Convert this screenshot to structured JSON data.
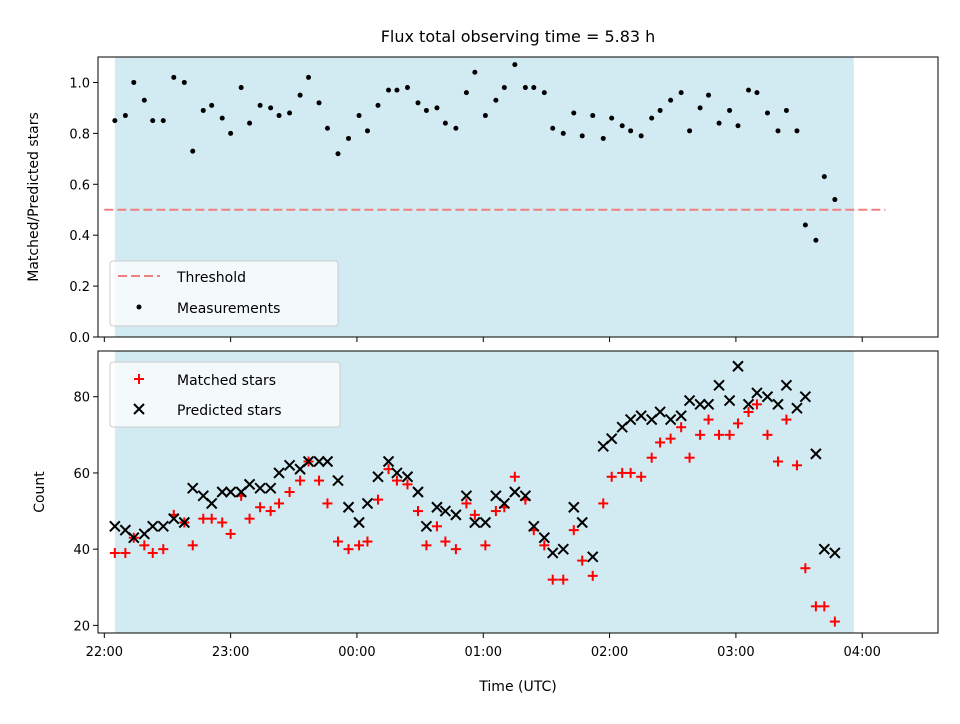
{
  "title": "Flux total observing time = 5.83 h",
  "colors": {
    "shade": "#add8e6",
    "threshold": "#f08080",
    "measurements": "#000000",
    "matched": "#ff0000",
    "predicted": "#000000"
  },
  "chart_data": [
    {
      "type": "scatter",
      "panel": "top",
      "ylabel": "Matched/Predicted stars",
      "xlabel": "",
      "ylim": [
        0,
        1.1
      ],
      "yticks": [
        0.0,
        0.2,
        0.4,
        0.6,
        0.8,
        1.0
      ],
      "ytick_labels": [
        "0.0",
        "0.2",
        "0.4",
        "0.6",
        "0.8",
        "1.0"
      ],
      "legend": {
        "placement": "lower-left",
        "entries": [
          "Threshold",
          "Measurements"
        ]
      },
      "threshold": {
        "name": "Threshold",
        "value": 0.5,
        "x_start": "22:00",
        "x_end": "04:11",
        "style": "dashed"
      },
      "shaded_region": {
        "x_start": "22:05",
        "x_end": "03:56"
      },
      "series": [
        {
          "name": "Measurements",
          "marker": "dot",
          "points": [
            [
              "22:05",
              0.85
            ],
            [
              "22:10",
              0.87
            ],
            [
              "22:14",
              1.0
            ],
            [
              "22:19",
              0.93
            ],
            [
              "22:23",
              0.85
            ],
            [
              "22:28",
              0.85
            ],
            [
              "22:33",
              1.02
            ],
            [
              "22:38",
              1.0
            ],
            [
              "22:42",
              0.73
            ],
            [
              "22:47",
              0.89
            ],
            [
              "22:51",
              0.91
            ],
            [
              "22:56",
              0.86
            ],
            [
              "23:00",
              0.8
            ],
            [
              "23:05",
              0.98
            ],
            [
              "23:09",
              0.84
            ],
            [
              "23:14",
              0.91
            ],
            [
              "23:19",
              0.9
            ],
            [
              "23:23",
              0.87
            ],
            [
              "23:28",
              0.88
            ],
            [
              "23:33",
              0.95
            ],
            [
              "23:37",
              1.02
            ],
            [
              "23:42",
              0.92
            ],
            [
              "23:46",
              0.82
            ],
            [
              "23:51",
              0.72
            ],
            [
              "23:56",
              0.78
            ],
            [
              "00:01",
              0.87
            ],
            [
              "00:05",
              0.81
            ],
            [
              "00:10",
              0.91
            ],
            [
              "00:15",
              0.97
            ],
            [
              "00:19",
              0.97
            ],
            [
              "00:24",
              0.98
            ],
            [
              "00:29",
              0.92
            ],
            [
              "00:33",
              0.89
            ],
            [
              "00:38",
              0.9
            ],
            [
              "00:42",
              0.84
            ],
            [
              "00:47",
              0.82
            ],
            [
              "00:52",
              0.96
            ],
            [
              "00:56",
              1.04
            ],
            [
              "01:01",
              0.87
            ],
            [
              "01:06",
              0.93
            ],
            [
              "01:10",
              0.98
            ],
            [
              "01:15",
              1.07
            ],
            [
              "01:20",
              0.98
            ],
            [
              "01:24",
              0.98
            ],
            [
              "01:29",
              0.96
            ],
            [
              "01:33",
              0.82
            ],
            [
              "01:38",
              0.8
            ],
            [
              "01:43",
              0.88
            ],
            [
              "01:47",
              0.79
            ],
            [
              "01:52",
              0.87
            ],
            [
              "01:57",
              0.78
            ],
            [
              "02:01",
              0.86
            ],
            [
              "02:06",
              0.83
            ],
            [
              "02:10",
              0.81
            ],
            [
              "02:15",
              0.79
            ],
            [
              "02:20",
              0.86
            ],
            [
              "02:24",
              0.89
            ],
            [
              "02:29",
              0.93
            ],
            [
              "02:34",
              0.96
            ],
            [
              "02:38",
              0.81
            ],
            [
              "02:43",
              0.9
            ],
            [
              "02:47",
              0.95
            ],
            [
              "02:52",
              0.84
            ],
            [
              "02:57",
              0.89
            ],
            [
              "03:01",
              0.83
            ],
            [
              "03:06",
              0.97
            ],
            [
              "03:10",
              0.96
            ],
            [
              "03:15",
              0.88
            ],
            [
              "03:20",
              0.81
            ],
            [
              "03:24",
              0.89
            ],
            [
              "03:29",
              0.81
            ],
            [
              "03:33",
              0.44
            ],
            [
              "03:38",
              0.38
            ],
            [
              "03:42",
              0.63
            ],
            [
              "03:47",
              0.54
            ]
          ]
        }
      ]
    },
    {
      "type": "scatter",
      "panel": "bottom",
      "ylabel": "Count",
      "xlabel": "Time (UTC)",
      "ylim": [
        18,
        92
      ],
      "yticks": [
        20,
        40,
        60,
        80
      ],
      "ytick_labels": [
        "20",
        "40",
        "60",
        "80"
      ],
      "xticks": [
        "22:00",
        "23:00",
        "00:00",
        "01:00",
        "02:00",
        "03:00",
        "04:00"
      ],
      "legend": {
        "placement": "upper-left",
        "entries": [
          "Matched stars",
          "Predicted stars"
        ]
      },
      "shaded_region": {
        "x_start": "22:05",
        "x_end": "03:56"
      },
      "series": [
        {
          "name": "Matched stars",
          "marker": "plus",
          "points": [
            [
              "22:05",
              39
            ],
            [
              "22:10",
              39
            ],
            [
              "22:14",
              43
            ],
            [
              "22:19",
              41
            ],
            [
              "22:23",
              39
            ],
            [
              "22:28",
              40
            ],
            [
              "22:33",
              49
            ],
            [
              "22:38",
              47
            ],
            [
              "22:42",
              41
            ],
            [
              "22:47",
              48
            ],
            [
              "22:51",
              48
            ],
            [
              "22:56",
              47
            ],
            [
              "23:00",
              44
            ],
            [
              "23:05",
              54
            ],
            [
              "23:09",
              48
            ],
            [
              "23:14",
              51
            ],
            [
              "23:19",
              50
            ],
            [
              "23:23",
              52
            ],
            [
              "23:28",
              55
            ],
            [
              "23:33",
              58
            ],
            [
              "23:37",
              63
            ],
            [
              "23:42",
              58
            ],
            [
              "23:46",
              52
            ],
            [
              "23:51",
              42
            ],
            [
              "23:56",
              40
            ],
            [
              "00:01",
              41
            ],
            [
              "00:05",
              42
            ],
            [
              "00:10",
              53
            ],
            [
              "00:15",
              61
            ],
            [
              "00:19",
              58
            ],
            [
              "00:24",
              57
            ],
            [
              "00:29",
              50
            ],
            [
              "00:33",
              41
            ],
            [
              "00:38",
              46
            ],
            [
              "00:42",
              42
            ],
            [
              "00:47",
              40
            ],
            [
              "00:52",
              52
            ],
            [
              "00:56",
              49
            ],
            [
              "01:01",
              41
            ],
            [
              "01:06",
              50
            ],
            [
              "01:10",
              51
            ],
            [
              "01:15",
              59
            ],
            [
              "01:20",
              53
            ],
            [
              "01:24",
              45
            ],
            [
              "01:29",
              41
            ],
            [
              "01:33",
              32
            ],
            [
              "01:38",
              32
            ],
            [
              "01:43",
              45
            ],
            [
              "01:47",
              37
            ],
            [
              "01:52",
              33
            ],
            [
              "01:57",
              52
            ],
            [
              "02:01",
              59
            ],
            [
              "02:06",
              60
            ],
            [
              "02:10",
              60
            ],
            [
              "02:15",
              59
            ],
            [
              "02:20",
              64
            ],
            [
              "02:24",
              68
            ],
            [
              "02:29",
              69
            ],
            [
              "02:34",
              72
            ],
            [
              "02:38",
              64
            ],
            [
              "02:43",
              70
            ],
            [
              "02:47",
              74
            ],
            [
              "02:52",
              70
            ],
            [
              "02:57",
              70
            ],
            [
              "03:01",
              73
            ],
            [
              "03:06",
              76
            ],
            [
              "03:10",
              78
            ],
            [
              "03:15",
              70
            ],
            [
              "03:20",
              63
            ],
            [
              "03:24",
              74
            ],
            [
              "03:29",
              62
            ],
            [
              "03:33",
              35
            ],
            [
              "03:38",
              25
            ],
            [
              "03:42",
              25
            ],
            [
              "03:47",
              21
            ]
          ]
        },
        {
          "name": "Predicted stars",
          "marker": "x",
          "points": [
            [
              "22:05",
              46
            ],
            [
              "22:10",
              45
            ],
            [
              "22:14",
              43
            ],
            [
              "22:19",
              44
            ],
            [
              "22:23",
              46
            ],
            [
              "22:28",
              46
            ],
            [
              "22:33",
              48
            ],
            [
              "22:38",
              47
            ],
            [
              "22:42",
              56
            ],
            [
              "22:47",
              54
            ],
            [
              "22:51",
              52
            ],
            [
              "22:56",
              55
            ],
            [
              "23:00",
              55
            ],
            [
              "23:05",
              55
            ],
            [
              "23:09",
              57
            ],
            [
              "23:14",
              56
            ],
            [
              "23:19",
              56
            ],
            [
              "23:23",
              60
            ],
            [
              "23:28",
              62
            ],
            [
              "23:33",
              61
            ],
            [
              "23:37",
              63
            ],
            [
              "23:42",
              63
            ],
            [
              "23:46",
              63
            ],
            [
              "23:51",
              58
            ],
            [
              "23:56",
              51
            ],
            [
              "00:01",
              47
            ],
            [
              "00:05",
              52
            ],
            [
              "00:10",
              59
            ],
            [
              "00:15",
              63
            ],
            [
              "00:19",
              60
            ],
            [
              "00:24",
              59
            ],
            [
              "00:29",
              55
            ],
            [
              "00:33",
              46
            ],
            [
              "00:38",
              51
            ],
            [
              "00:42",
              50
            ],
            [
              "00:47",
              49
            ],
            [
              "00:52",
              54
            ],
            [
              "00:56",
              47
            ],
            [
              "01:01",
              47
            ],
            [
              "01:06",
              54
            ],
            [
              "01:10",
              52
            ],
            [
              "01:15",
              55
            ],
            [
              "01:20",
              54
            ],
            [
              "01:24",
              46
            ],
            [
              "01:29",
              43
            ],
            [
              "01:33",
              39
            ],
            [
              "01:38",
              40
            ],
            [
              "01:43",
              51
            ],
            [
              "01:47",
              47
            ],
            [
              "01:52",
              38
            ],
            [
              "01:57",
              67
            ],
            [
              "02:01",
              69
            ],
            [
              "02:06",
              72
            ],
            [
              "02:10",
              74
            ],
            [
              "02:15",
              75
            ],
            [
              "02:20",
              74
            ],
            [
              "02:24",
              76
            ],
            [
              "02:29",
              74
            ],
            [
              "02:34",
              75
            ],
            [
              "02:38",
              79
            ],
            [
              "02:43",
              78
            ],
            [
              "02:47",
              78
            ],
            [
              "02:52",
              83
            ],
            [
              "02:57",
              79
            ],
            [
              "03:01",
              88
            ],
            [
              "03:06",
              78
            ],
            [
              "03:10",
              81
            ],
            [
              "03:15",
              80
            ],
            [
              "03:20",
              78
            ],
            [
              "03:24",
              83
            ],
            [
              "03:29",
              77
            ],
            [
              "03:33",
              80
            ],
            [
              "03:38",
              65
            ],
            [
              "03:42",
              40
            ],
            [
              "03:47",
              39
            ]
          ]
        }
      ]
    }
  ]
}
